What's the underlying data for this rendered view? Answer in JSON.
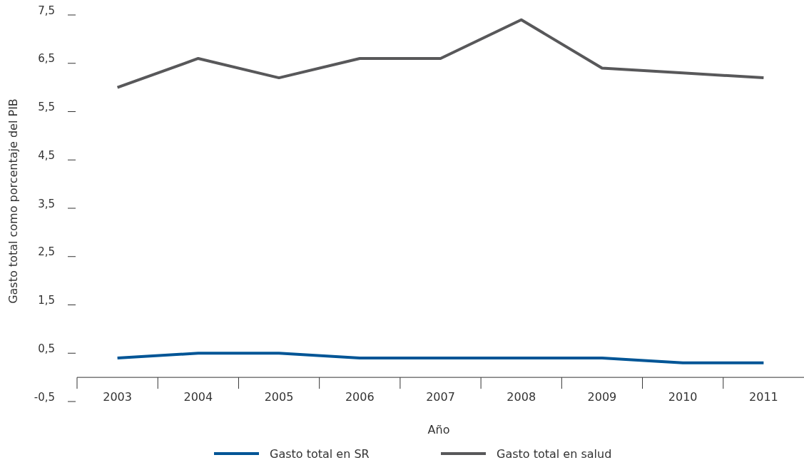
{
  "chart_data": {
    "type": "line",
    "xlabel": "Año",
    "ylabel": "Gasto total como porcentaje del PIB",
    "categories": [
      "2003",
      "2004",
      "2005",
      "2006",
      "2007",
      "2008",
      "2009",
      "2010",
      "2011"
    ],
    "series": [
      {
        "name": "Gasto total en SR",
        "color": "#005596",
        "values": [
          0.4,
          0.5,
          0.5,
          0.4,
          0.4,
          0.4,
          0.4,
          0.3,
          0.3
        ]
      },
      {
        "name": "Gasto total en salud",
        "color": "#58585a",
        "values": [
          6.0,
          6.6,
          6.2,
          6.6,
          6.6,
          7.4,
          6.4,
          6.3,
          6.2
        ]
      }
    ],
    "ylim": [
      -0.5,
      7.5
    ],
    "yticks": [
      {
        "value": -0.5,
        "label": "-0,5"
      },
      {
        "value": 0.5,
        "label": "0,5"
      },
      {
        "value": 1.5,
        "label": "1,5"
      },
      {
        "value": 2.5,
        "label": "2,5"
      },
      {
        "value": 3.5,
        "label": "3,5"
      },
      {
        "value": 4.5,
        "label": "4,5"
      },
      {
        "value": 5.5,
        "label": "5,5"
      },
      {
        "value": 6.5,
        "label": "6,5"
      },
      {
        "value": 7.5,
        "label": "7,5"
      }
    ],
    "grid": false,
    "legend": "bottom",
    "marker": "none",
    "line_style": "solid"
  }
}
